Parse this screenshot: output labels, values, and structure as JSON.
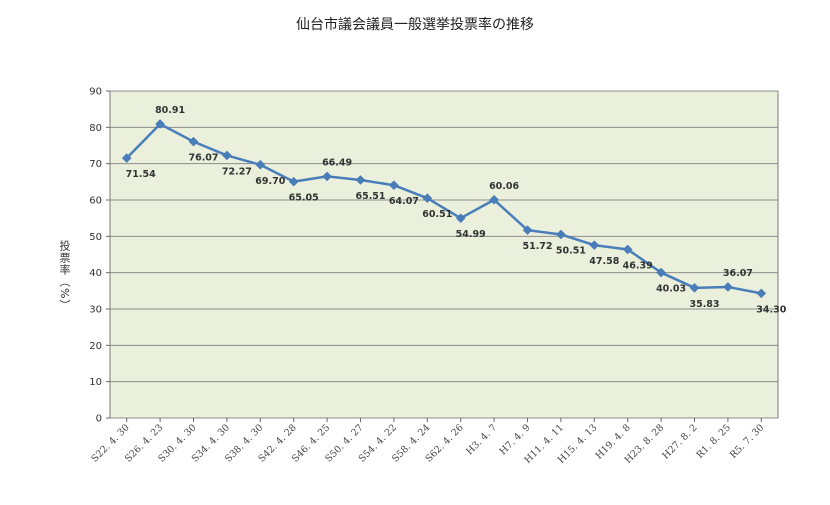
{
  "chart_data": {
    "type": "line",
    "title": "仙台市議会議員一般選挙投票率の推移",
    "xlabel": "",
    "ylabel": "投票率（%）",
    "ylim": [
      0,
      90
    ],
    "yticks": [
      0,
      10,
      20,
      30,
      40,
      50,
      60,
      70,
      80,
      90
    ],
    "grid": true,
    "colors": {
      "line": "#4a7ebb",
      "plot_bg": "#eaf0dc",
      "grid": "#8c8c8c"
    },
    "categories": [
      "S22. 4. 30",
      "S26. 4. 23",
      "S30. 4. 30",
      "S34. 4. 30",
      "S38. 4. 30",
      "S42. 4. 28",
      "S46. 4. 25",
      "S50. 4. 27",
      "S54. 4. 22",
      "S58. 4. 24",
      "S62. 4. 26",
      "H3. 4. 7",
      "H7. 4. 9",
      "H11. 4. 11",
      "H15. 4. 13",
      "H19. 4. 8",
      "H23. 8. 28",
      "H27. 8. 2",
      "R1. 8. 25",
      "R5. 7. 30"
    ],
    "values": [
      71.54,
      80.91,
      76.07,
      72.27,
      69.7,
      65.05,
      66.49,
      65.51,
      64.07,
      60.51,
      54.99,
      60.06,
      51.72,
      50.51,
      47.58,
      46.39,
      40.03,
      35.83,
      36.07,
      34.3
    ],
    "labels": [
      "71.54",
      "80.91",
      "76.07",
      "72.27",
      "69.70",
      "65.05",
      "66.49",
      "65.51",
      "64.07",
      "60.51",
      "54.99",
      "60.06",
      "51.72",
      "50.51",
      "47.58",
      "46.39",
      "40.03",
      "35.83",
      "36.07",
      "34.30"
    ]
  }
}
